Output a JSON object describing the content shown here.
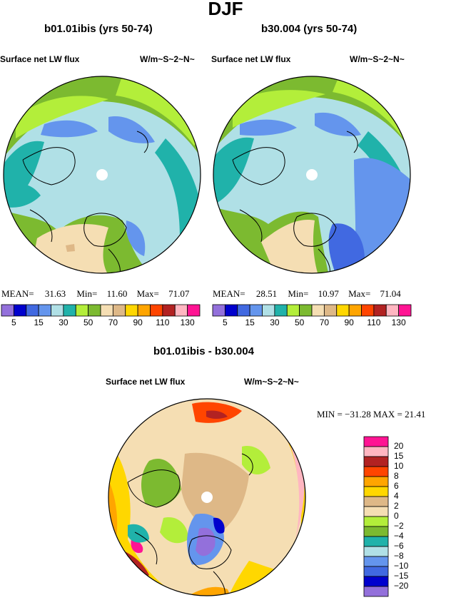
{
  "title": "DJF",
  "panels": [
    {
      "name": "b01.01ibis (yrs 50-74)",
      "variable": "Surface net LW flux",
      "units": "W/m~S~2~N~",
      "stats": {
        "mean_label": "MEAN=",
        "mean": "31.63",
        "min_label": "Min=",
        "min": "11.60",
        "max_label": "Max=",
        "max": "71.07"
      }
    },
    {
      "name": "b30.004 (yrs 50-74)",
      "variable": "Surface net LW flux",
      "units": "W/m~S~2~N~",
      "stats": {
        "mean_label": "MEAN=",
        "mean": "28.51",
        "min_label": "Min=",
        "min": "10.97",
        "max_label": "Max=",
        "max": "71.04"
      }
    }
  ],
  "top_colorbar": {
    "colors": [
      "#9370db",
      "#0000cd",
      "#4169e1",
      "#6495ed",
      "#b0e0e6",
      "#20b2aa",
      "#b3ee3a",
      "#7cba30",
      "#f5deb3",
      "#deb887",
      "#ffd700",
      "#ffa500",
      "#ff4500",
      "#b22222",
      "#ffb6c1",
      "#ff1493"
    ],
    "tick_labels": [
      "5",
      "15",
      "30",
      "50",
      "70",
      "90",
      "110",
      "130"
    ]
  },
  "difference": {
    "title": "b01.01ibis - b30.004",
    "variable": "Surface net LW flux",
    "units": "W/m~S~2~N~",
    "stats_text": "MIN = −31.28  MAX =  21.41"
  },
  "diff_colorbar": {
    "colors": [
      "#ff1493",
      "#ffb6c1",
      "#b22222",
      "#ff4500",
      "#ffa500",
      "#ffd700",
      "#deb887",
      "#f5deb3",
      "#b3ee3a",
      "#7cba30",
      "#20b2aa",
      "#b0e0e6",
      "#6495ed",
      "#4169e1",
      "#0000cd",
      "#9370db"
    ],
    "tick_labels": [
      "20",
      "15",
      "10",
      "8",
      "6",
      "4",
      "2",
      "0",
      "−2",
      "−4",
      "−6",
      "−8",
      "−10",
      "−15",
      "−20"
    ]
  }
}
